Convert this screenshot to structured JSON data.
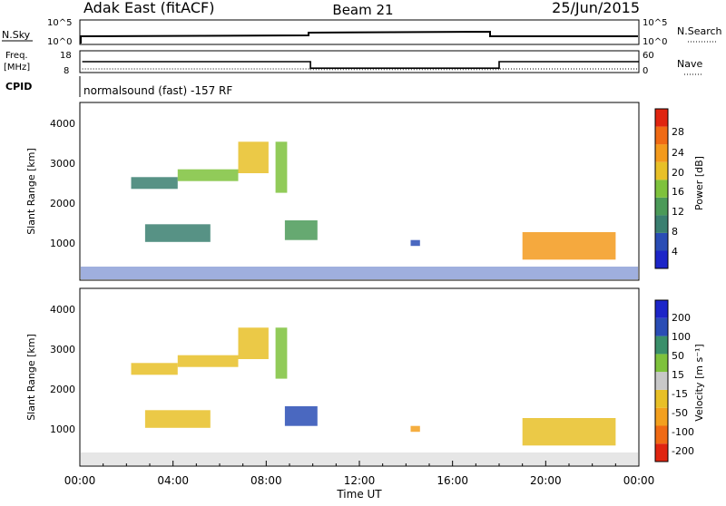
{
  "header": {
    "radar": "Adak East (fitACF)",
    "beam": "Beam 21",
    "date": "25/Jun/2015"
  },
  "noise_panel": {
    "left_label": "N.Sky",
    "right_label": "N.Search",
    "ticks": [
      "10^5",
      "10^0"
    ],
    "ticks_right": [
      "10^5",
      "10^0"
    ]
  },
  "freq_panel": {
    "left_label": "Freq.",
    "left_unit": "[MHz]",
    "left_ticks": [
      "18",
      "8"
    ],
    "right_label": "Nave",
    "right_ticks": [
      "60",
      "0"
    ]
  },
  "cpid": {
    "label": "CPID",
    "text": "normalsound (fast) -157 RF"
  },
  "power_panel": {
    "ylabel": "Slant Range [km]",
    "yticks": [
      "4000",
      "3000",
      "2000",
      "1000"
    ],
    "colorbar_label": "Power [dB]",
    "colorbar_ticks": [
      "28",
      "24",
      "20",
      "16",
      "12",
      "8",
      "4"
    ]
  },
  "velocity_panel": {
    "ylabel": "Slant Range [km]",
    "yticks": [
      "4000",
      "3000",
      "2000",
      "1000"
    ],
    "colorbar_label": "Velocity [m s⁻¹]",
    "colorbar_ticks": [
      "200",
      "100",
      "50",
      "15",
      "-15",
      "-50",
      "-100",
      "-200"
    ]
  },
  "xaxis": {
    "label": "Time UT",
    "ticks": [
      "00:00",
      "04:00",
      "08:00",
      "12:00",
      "16:00",
      "20:00",
      "00:00"
    ]
  },
  "colors": {
    "power_scale": [
      "#1c25c8",
      "#2a4db5",
      "#3a7f70",
      "#4b9a58",
      "#7ec23c",
      "#e8c027",
      "#f39a1c",
      "#f06a14",
      "#e02510"
    ],
    "velocity_scale": [
      "#e02510",
      "#f06a14",
      "#f3a01e",
      "#e8c027",
      "#c8c8c8",
      "#7ec23c",
      "#3a8f6a",
      "#2a4db5",
      "#1c25c8"
    ]
  },
  "chart_data": {
    "type": "heatmap",
    "time_range_hours": [
      0,
      24
    ],
    "range_km": [
      0,
      4500
    ],
    "freq_mhz": {
      "x": [
        0.1,
        9.9,
        9.9,
        18.0,
        18.0,
        24.0
      ],
      "y": [
        13,
        13,
        10,
        10,
        13,
        13
      ]
    },
    "nave": {
      "x": [
        0.1,
        9.9,
        9.9,
        18.0,
        18.0,
        24.0
      ],
      "y": [
        10,
        10,
        8,
        8,
        10,
        10
      ]
    },
    "echo_regions": [
      {
        "t0": 2.2,
        "t1": 4.2,
        "r0": 2300,
        "r1": 2600,
        "power": 10,
        "velocity": -15
      },
      {
        "t0": 4.2,
        "t1": 6.8,
        "r0": 2500,
        "r1": 2800,
        "power": 14,
        "velocity": -15
      },
      {
        "t0": 6.8,
        "t1": 8.1,
        "r0": 2700,
        "r1": 3500,
        "power": 18,
        "velocity": -30
      },
      {
        "t0": 8.4,
        "t1": 8.9,
        "r0": 2200,
        "r1": 3500,
        "power": 16,
        "velocity": 30
      },
      {
        "t0": 2.8,
        "t1": 5.6,
        "r0": 950,
        "r1": 1400,
        "power": 10,
        "velocity": -15
      },
      {
        "t0": 8.8,
        "t1": 10.2,
        "r0": 1000,
        "r1": 1500,
        "power": 12,
        "velocity": 150
      },
      {
        "t0": 19.0,
        "t1": 23.0,
        "r0": 500,
        "r1": 1200,
        "power": 20,
        "velocity": -15
      },
      {
        "t0": 14.2,
        "t1": 14.6,
        "r0": 850,
        "r1": 1000,
        "power": 6,
        "velocity": -50
      }
    ]
  }
}
